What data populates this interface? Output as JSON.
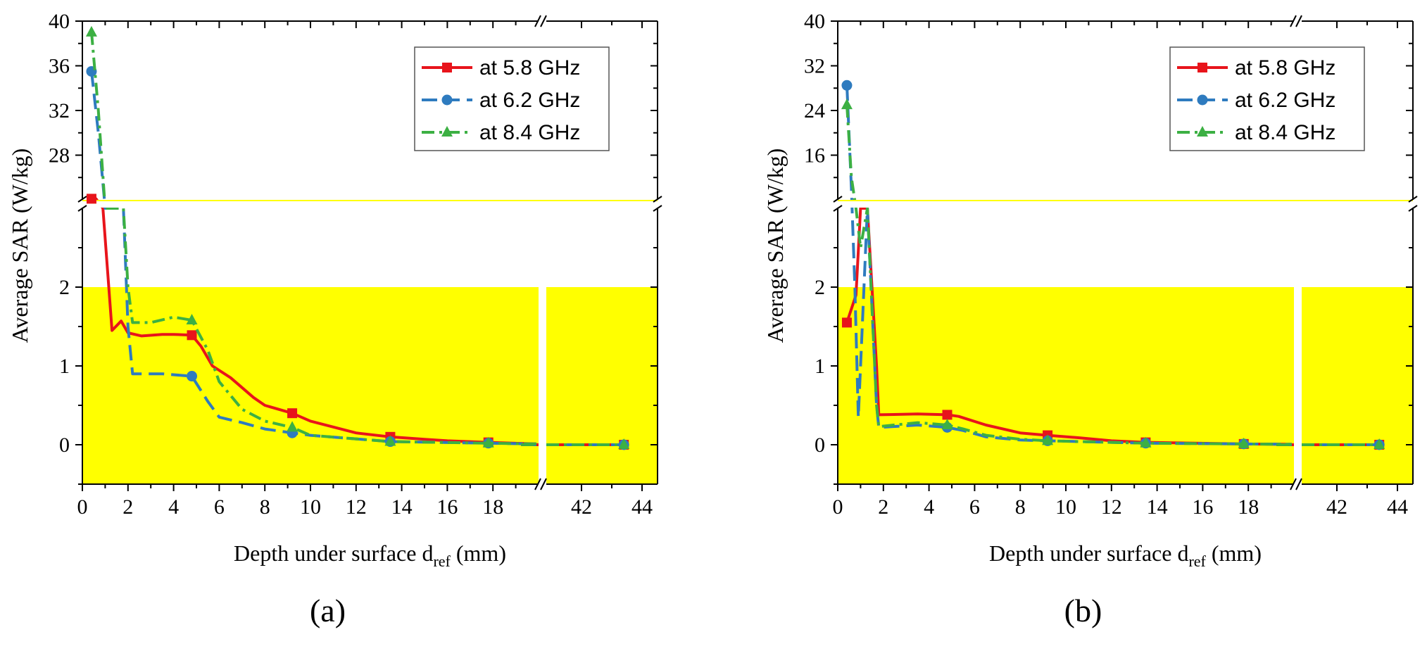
{
  "colors": {
    "background": "#ffffff",
    "safe_region": "#ffff00",
    "series_5_8": "#e8141b",
    "series_6_2": "#2e7bbf",
    "series_8_4": "#3cb043",
    "axis": "#000000"
  },
  "chart_data": [
    {
      "type": "line",
      "panel_label": "(a)",
      "panel_letter": "a",
      "xlabel_main": "Depth under surface d",
      "xlabel_sub": "ref",
      "xlabel_unit": " (mm)",
      "ylabel": "Average SAR (W/kg)",
      "x_axis_break": [
        20,
        40
      ],
      "xlim": [
        0,
        45
      ],
      "x_ticks": [
        0,
        2,
        4,
        6,
        8,
        10,
        12,
        14,
        16,
        18,
        42,
        44
      ],
      "x_tick_labels": [
        "0",
        "2",
        "4",
        "6",
        "8",
        "10",
        "12",
        "14",
        "16",
        "18",
        "42",
        "44"
      ],
      "y_axis_break": [
        3,
        24
      ],
      "ylim_lower": [
        -0.5,
        3.0
      ],
      "ylim_upper": [
        24,
        40
      ],
      "y_ticks_lower": [
        0,
        1,
        2
      ],
      "y_tick_labels_lower": [
        "0",
        "1",
        "2"
      ],
      "y_ticks_upper": [
        28,
        32,
        36,
        40
      ],
      "y_tick_labels_upper": [
        "28",
        "32",
        "36",
        "40"
      ],
      "safe_region": [
        -0.5,
        2.0
      ],
      "legend_placement": "top-right",
      "series": [
        {
          "name": "at 5.8 GHz",
          "x": [
            0.4,
            0.6,
            0.9,
            1.3,
            1.7,
            2.0,
            2.6,
            3.5,
            4.0,
            4.8,
            5.2,
            5.7,
            6.5,
            7.5,
            8.0,
            9.2,
            10.0,
            12.0,
            13.5,
            15.0,
            16.0,
            17.8,
            19.9,
            40.0,
            43.4
          ],
          "y": [
            24.1,
            24.1,
            3.0,
            1.45,
            1.57,
            1.42,
            1.38,
            1.4,
            1.4,
            1.39,
            1.25,
            1.0,
            0.85,
            0.6,
            0.5,
            0.4,
            0.3,
            0.15,
            0.1,
            0.07,
            0.05,
            0.03,
            0.01,
            0.0,
            0.0
          ],
          "marker_x": [
            0.4,
            4.8,
            9.2,
            13.5,
            17.8,
            43.4
          ],
          "marker_y": [
            24.1,
            1.39,
            0.4,
            0.1,
            0.03,
            0.0
          ]
        },
        {
          "name": "at 6.2 GHz",
          "x": [
            0.4,
            0.7,
            1.0,
            1.8,
            2.0,
            2.2,
            3.5,
            4.8,
            5.5,
            6.0,
            7.0,
            8.0,
            9.2,
            10.0,
            13.5,
            17.8,
            19.9,
            40.0,
            43.4
          ],
          "y": [
            35.5,
            30.0,
            3.0,
            3.0,
            1.5,
            0.9,
            0.9,
            0.87,
            0.55,
            0.35,
            0.28,
            0.2,
            0.15,
            0.12,
            0.04,
            0.02,
            0.01,
            0.0,
            0.0
          ],
          "marker_x": [
            0.4,
            4.8,
            9.2,
            13.5,
            17.8,
            43.4
          ],
          "marker_y": [
            35.5,
            0.87,
            0.15,
            0.04,
            0.02,
            0.0
          ]
        },
        {
          "name": "at 8.4 GHz",
          "x": [
            0.4,
            0.7,
            1.0,
            1.8,
            2.0,
            2.2,
            3.0,
            4.0,
            4.8,
            5.5,
            6.0,
            7.0,
            8.0,
            9.2,
            10.0,
            13.5,
            17.8,
            19.9,
            40.0,
            43.4
          ],
          "y": [
            39.0,
            32.0,
            3.0,
            3.0,
            2.0,
            1.55,
            1.55,
            1.62,
            1.58,
            1.2,
            0.8,
            0.45,
            0.3,
            0.22,
            0.12,
            0.04,
            0.02,
            0.01,
            0.0,
            0.0
          ],
          "marker_x": [
            0.4,
            4.8,
            9.2,
            13.5,
            17.8,
            43.4
          ],
          "marker_y": [
            39.0,
            1.58,
            0.22,
            0.04,
            0.02,
            0.0
          ]
        }
      ]
    },
    {
      "type": "line",
      "panel_label": "(b)",
      "panel_letter": "b",
      "xlabel_main": "Depth under surface d",
      "xlabel_sub": "ref",
      "xlabel_unit": " (mm)",
      "ylabel": "Average SAR (W/kg)",
      "x_axis_break": [
        20,
        40
      ],
      "xlim": [
        0,
        45
      ],
      "x_ticks": [
        0,
        2,
        4,
        6,
        8,
        10,
        12,
        14,
        16,
        18,
        42,
        44
      ],
      "x_tick_labels": [
        "0",
        "2",
        "4",
        "6",
        "8",
        "10",
        "12",
        "14",
        "16",
        "18",
        "42",
        "44"
      ],
      "y_axis_break": [
        3,
        8
      ],
      "ylim_lower": [
        -0.5,
        3.0
      ],
      "ylim_upper": [
        8,
        40
      ],
      "y_ticks_lower": [
        0,
        1,
        2
      ],
      "y_tick_labels_lower": [
        "0",
        "1",
        "2"
      ],
      "y_ticks_upper": [
        16,
        24,
        32,
        40
      ],
      "y_tick_labels_upper": [
        "16",
        "24",
        "32",
        "40"
      ],
      "safe_region": [
        -0.5,
        2.0
      ],
      "legend_placement": "top-right",
      "series": [
        {
          "name": "at 5.8 GHz",
          "x": [
            0.4,
            0.8,
            1.0,
            1.3,
            1.7,
            1.8,
            3.5,
            4.8,
            5.3,
            6.5,
            8.0,
            9.2,
            10.5,
            12.0,
            13.5,
            17.8,
            19.9,
            40.0,
            43.4
          ],
          "y": [
            1.55,
            1.9,
            3.0,
            3.0,
            1.0,
            0.38,
            0.39,
            0.38,
            0.36,
            0.25,
            0.15,
            0.12,
            0.09,
            0.05,
            0.03,
            0.01,
            0.005,
            0.0,
            0.0
          ],
          "marker_x": [
            0.4,
            4.8,
            9.2,
            13.5,
            17.8,
            43.4
          ],
          "marker_y": [
            1.55,
            0.38,
            0.12,
            0.03,
            0.01,
            0.0
          ]
        },
        {
          "name": "at 6.2 GHz",
          "x": [
            0.4,
            0.6,
            0.75,
            0.9,
            1.0,
            1.3,
            1.7,
            1.8,
            3.5,
            4.8,
            5.5,
            6.5,
            8.0,
            9.2,
            13.5,
            17.8,
            19.9,
            40.0,
            43.4
          ],
          "y": [
            28.5,
            10.0,
            2.0,
            0.35,
            1.0,
            3.0,
            0.5,
            0.22,
            0.25,
            0.22,
            0.18,
            0.1,
            0.06,
            0.05,
            0.02,
            0.01,
            0.005,
            0.0,
            0.0
          ],
          "marker_x": [
            0.4,
            4.8,
            9.2,
            13.5,
            17.8,
            43.4
          ],
          "marker_y": [
            28.5,
            0.22,
            0.05,
            0.02,
            0.01,
            0.0
          ]
        },
        {
          "name": "at 8.4 GHz",
          "x": [
            0.4,
            0.6,
            0.8,
            1.0,
            1.3,
            1.7,
            1.8,
            3.5,
            4.8,
            5.5,
            6.5,
            8.0,
            9.2,
            13.5,
            17.8,
            19.9,
            40.0,
            43.4
          ],
          "y": [
            25.0,
            12.0,
            3.0,
            2.5,
            3.0,
            0.5,
            0.23,
            0.28,
            0.25,
            0.2,
            0.12,
            0.07,
            0.05,
            0.02,
            0.01,
            0.005,
            0.0,
            0.0
          ],
          "marker_x": [
            0.4,
            4.8,
            9.2,
            13.5,
            17.8,
            43.4
          ],
          "marker_y": [
            25.0,
            0.25,
            0.05,
            0.02,
            0.01,
            0.0
          ]
        }
      ]
    }
  ]
}
